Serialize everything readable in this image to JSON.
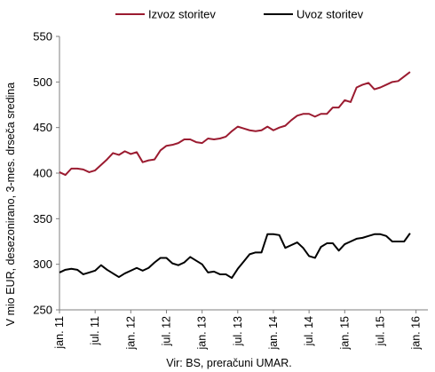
{
  "chart_data": {
    "type": "line",
    "ylabel": "V mio EUR, desezonirano, 3-mes. drseča sredina",
    "source": "Vir: BS, preračuni UMAR.",
    "ylim": [
      250,
      550
    ],
    "yticks": [
      250,
      300,
      350,
      400,
      450,
      500,
      550
    ],
    "xlim": [
      0,
      62
    ],
    "grid": false,
    "legend": "top",
    "xticks": [
      {
        "at": 0,
        "label": "jan. 11"
      },
      {
        "at": 6,
        "label": "jul. 11"
      },
      {
        "at": 12,
        "label": "jan. 12"
      },
      {
        "at": 18,
        "label": "jul. 12"
      },
      {
        "at": 24,
        "label": "jan. 13"
      },
      {
        "at": 30,
        "label": "jul. 13"
      },
      {
        "at": 36,
        "label": "jan. 14"
      },
      {
        "at": 42,
        "label": "jul. 14"
      },
      {
        "at": 48,
        "label": "jan. 15"
      },
      {
        "at": 54,
        "label": "jul. 15"
      },
      {
        "at": 60,
        "label": "jan. 16"
      }
    ],
    "series": [
      {
        "name": "Izvoz storitev",
        "color": "#9b1b30",
        "values": [
          401,
          398,
          405,
          405,
          404,
          401,
          403,
          409,
          415,
          422,
          420,
          424,
          421,
          423,
          412,
          414,
          415,
          425,
          430,
          431,
          433,
          437,
          437,
          434,
          433,
          438,
          437,
          438,
          440,
          446,
          451,
          449,
          447,
          446,
          447,
          451,
          447,
          450,
          452,
          458,
          463,
          465,
          465,
          462,
          465,
          465,
          472,
          472,
          480,
          478,
          494,
          497,
          499,
          492,
          494,
          497,
          500,
          501,
          506,
          511
        ]
      },
      {
        "name": "Uvoz storitev",
        "color": "#000000",
        "values": [
          291,
          294,
          295,
          294,
          289,
          291,
          293,
          299,
          294,
          290,
          286,
          290,
          293,
          296,
          293,
          296,
          302,
          307,
          307,
          301,
          299,
          302,
          308,
          304,
          300,
          291,
          292,
          289,
          289,
          285,
          295,
          303,
          311,
          313,
          313,
          333,
          333,
          332,
          318,
          321,
          324,
          318,
          309,
          307,
          319,
          323,
          323,
          315,
          322,
          325,
          328,
          329,
          331,
          333,
          333,
          331,
          325,
          325,
          325,
          334
        ]
      }
    ]
  }
}
